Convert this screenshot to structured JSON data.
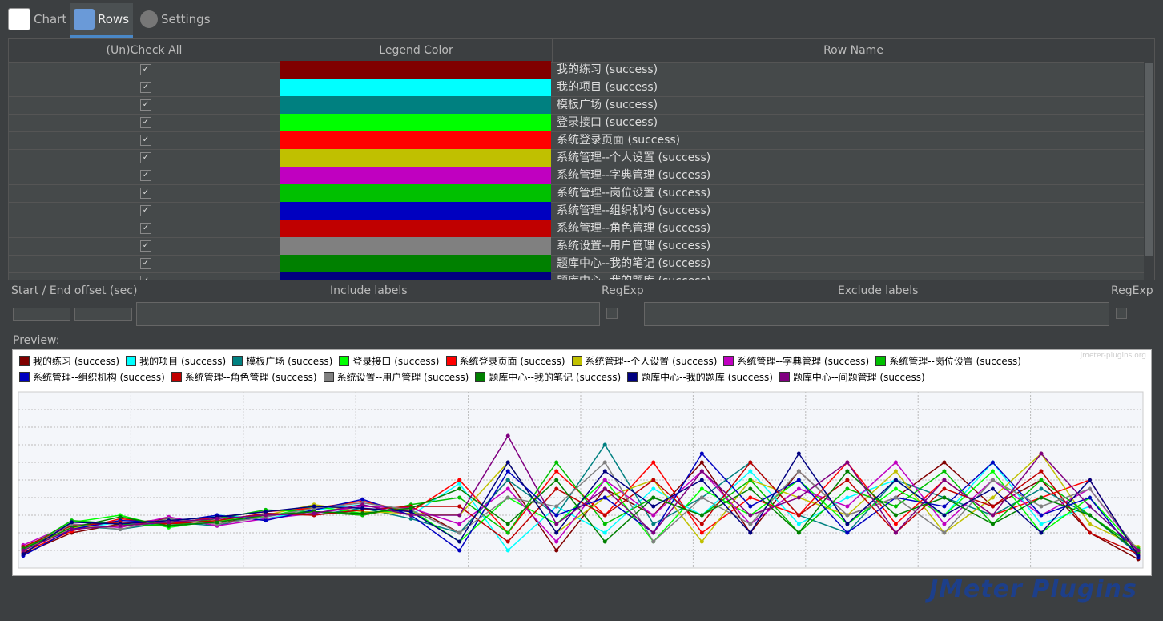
{
  "tabs": [
    "Chart",
    "Rows",
    "Settings"
  ],
  "table": {
    "headers": [
      "(Un)Check All",
      "Legend Color",
      "Row Name"
    ]
  },
  "filters": {
    "offset_label": "Start / End offset (sec)",
    "include_label": "Include labels",
    "include_regexp": "RegExp",
    "exclude_label": "Exclude labels",
    "exclude_regexp": "RegExp"
  },
  "preview_label": "Preview:",
  "watermark": "jmeter-plugins.org",
  "logo": "JMeter Plugins",
  "chart_data": {
    "type": "line",
    "ylim": [
      0,
      10
    ],
    "grid": true,
    "series": [
      {
        "name": "我的练习 (success)",
        "color": "#800000",
        "values": [
          0.8,
          2,
          2.5,
          2.8,
          2.5,
          3,
          3.2,
          3,
          3.5,
          2,
          5,
          1,
          4.5,
          3,
          6,
          2,
          5.5,
          3,
          4,
          6,
          3.5,
          5,
          2,
          0.5
        ]
      },
      {
        "name": "我的项目 (success)",
        "color": "#00ffff",
        "values": [
          1,
          2.2,
          2.6,
          2.4,
          3,
          2.8,
          3.3,
          3.6,
          3,
          4.8,
          1,
          3.5,
          2,
          4.5,
          3,
          5.5,
          2.5,
          4,
          5,
          3,
          6,
          2.5,
          3.5,
          1
        ]
      },
      {
        "name": "模板广场 (success)",
        "color": "#008080",
        "values": [
          1.2,
          2.4,
          2.2,
          2.6,
          2.4,
          3.1,
          3,
          3.4,
          2.8,
          2,
          5,
          3,
          7,
          2.5,
          4,
          6,
          3,
          2,
          5,
          4,
          3,
          4.5,
          3,
          0.8
        ]
      },
      {
        "name": "登录接口 (success)",
        "color": "#00ff00",
        "values": [
          1.1,
          2.6,
          3,
          2.3,
          2.7,
          2.9,
          3.5,
          3.1,
          3.3,
          1.5,
          4,
          2.5,
          5,
          1.5,
          4.5,
          3,
          5,
          2.5,
          4.5,
          3,
          5.5,
          2,
          4,
          1
        ]
      },
      {
        "name": "系统登录页面 (success)",
        "color": "#ff0000",
        "values": [
          0.9,
          2.1,
          2.8,
          2.5,
          2.9,
          3.2,
          3.4,
          3.8,
          3.2,
          5,
          2,
          5.5,
          3,
          6,
          2,
          4,
          3,
          6,
          2.5,
          5,
          3,
          4,
          5,
          0.7
        ]
      },
      {
        "name": "系统管理--个人设置 (success)",
        "color": "#c0c000",
        "values": [
          1,
          2.3,
          2.4,
          2.7,
          2.6,
          3,
          3.6,
          3.2,
          3.1,
          3,
          6,
          2,
          4,
          5,
          1.5,
          5,
          4,
          3,
          5.5,
          2,
          4,
          6.5,
          2.5,
          1.2
        ]
      },
      {
        "name": "系统管理--字典管理 (success)",
        "color": "#c000c0",
        "values": [
          1.3,
          2.5,
          2.3,
          2.9,
          2.4,
          2.8,
          3.1,
          3.5,
          3.4,
          2.5,
          4.5,
          1.5,
          5,
          3,
          5.5,
          2.5,
          4.5,
          3.5,
          6,
          2.5,
          5,
          3,
          4.5,
          0.9
        ]
      },
      {
        "name": "系统管理--岗位设置 (success)",
        "color": "#00c000",
        "values": [
          1,
          2.7,
          2.5,
          2.4,
          2.8,
          3.3,
          3.2,
          3,
          3.6,
          4,
          2,
          6,
          2.5,
          4,
          3,
          5,
          2,
          4.5,
          3.5,
          5.5,
          2.5,
          5,
          3,
          1.1
        ]
      },
      {
        "name": "系统管理--组织机构 (success)",
        "color": "#0000c0",
        "values": [
          0.7,
          2.2,
          2.7,
          2.6,
          3,
          2.7,
          3.3,
          3.9,
          3,
          1,
          5.5,
          3,
          4,
          2,
          6.5,
          3.5,
          5,
          2,
          4,
          3.5,
          6,
          3,
          4,
          0.6
        ]
      },
      {
        "name": "系统管理--角色管理 (success)",
        "color": "#c00000",
        "values": [
          1.2,
          2.4,
          2.6,
          2.5,
          2.7,
          3.1,
          3,
          3.3,
          3.5,
          3.5,
          1.5,
          4.5,
          3,
          5,
          2.5,
          6,
          3,
          5,
          2,
          4.5,
          3.5,
          5.5,
          2,
          0.8
        ]
      },
      {
        "name": "系统设置--用户管理 (success)",
        "color": "#808080",
        "values": [
          1,
          2.5,
          2.2,
          2.8,
          2.5,
          2.9,
          3.4,
          3.7,
          3.3,
          2,
          4,
          3.5,
          6,
          1.5,
          4,
          2.5,
          5.5,
          3,
          4,
          2,
          5,
          3.5,
          4.5,
          1
        ]
      },
      {
        "name": "题库中心--我的笔记 (success)",
        "color": "#008000",
        "values": [
          1.1,
          2.3,
          2.9,
          2.4,
          2.6,
          3,
          3.2,
          3.1,
          3.4,
          4.5,
          2.5,
          5,
          1.5,
          4,
          3,
          4.5,
          2,
          5.5,
          3,
          4,
          2.5,
          4,
          3,
          0.9
        ]
      },
      {
        "name": "题库中心--我的题库 (success)",
        "color": "#000080",
        "values": [
          0.8,
          2.6,
          2.5,
          2.7,
          2.9,
          3.2,
          3.5,
          3.4,
          3.2,
          1.5,
          6,
          2,
          5.5,
          3.5,
          5,
          2,
          6.5,
          2.5,
          5,
          3,
          4.5,
          2,
          5,
          0.7
        ]
      },
      {
        "name": "题库中心--间题管理 (success)",
        "color": "#800080",
        "values": [
          1,
          2.2,
          2.4,
          2.6,
          2.8,
          3,
          3.1,
          3.6,
          3,
          3,
          7.5,
          2.5,
          4.5,
          2,
          5.5,
          3,
          4,
          6,
          2,
          5,
          3,
          6.5,
          3.5,
          1
        ]
      }
    ]
  }
}
